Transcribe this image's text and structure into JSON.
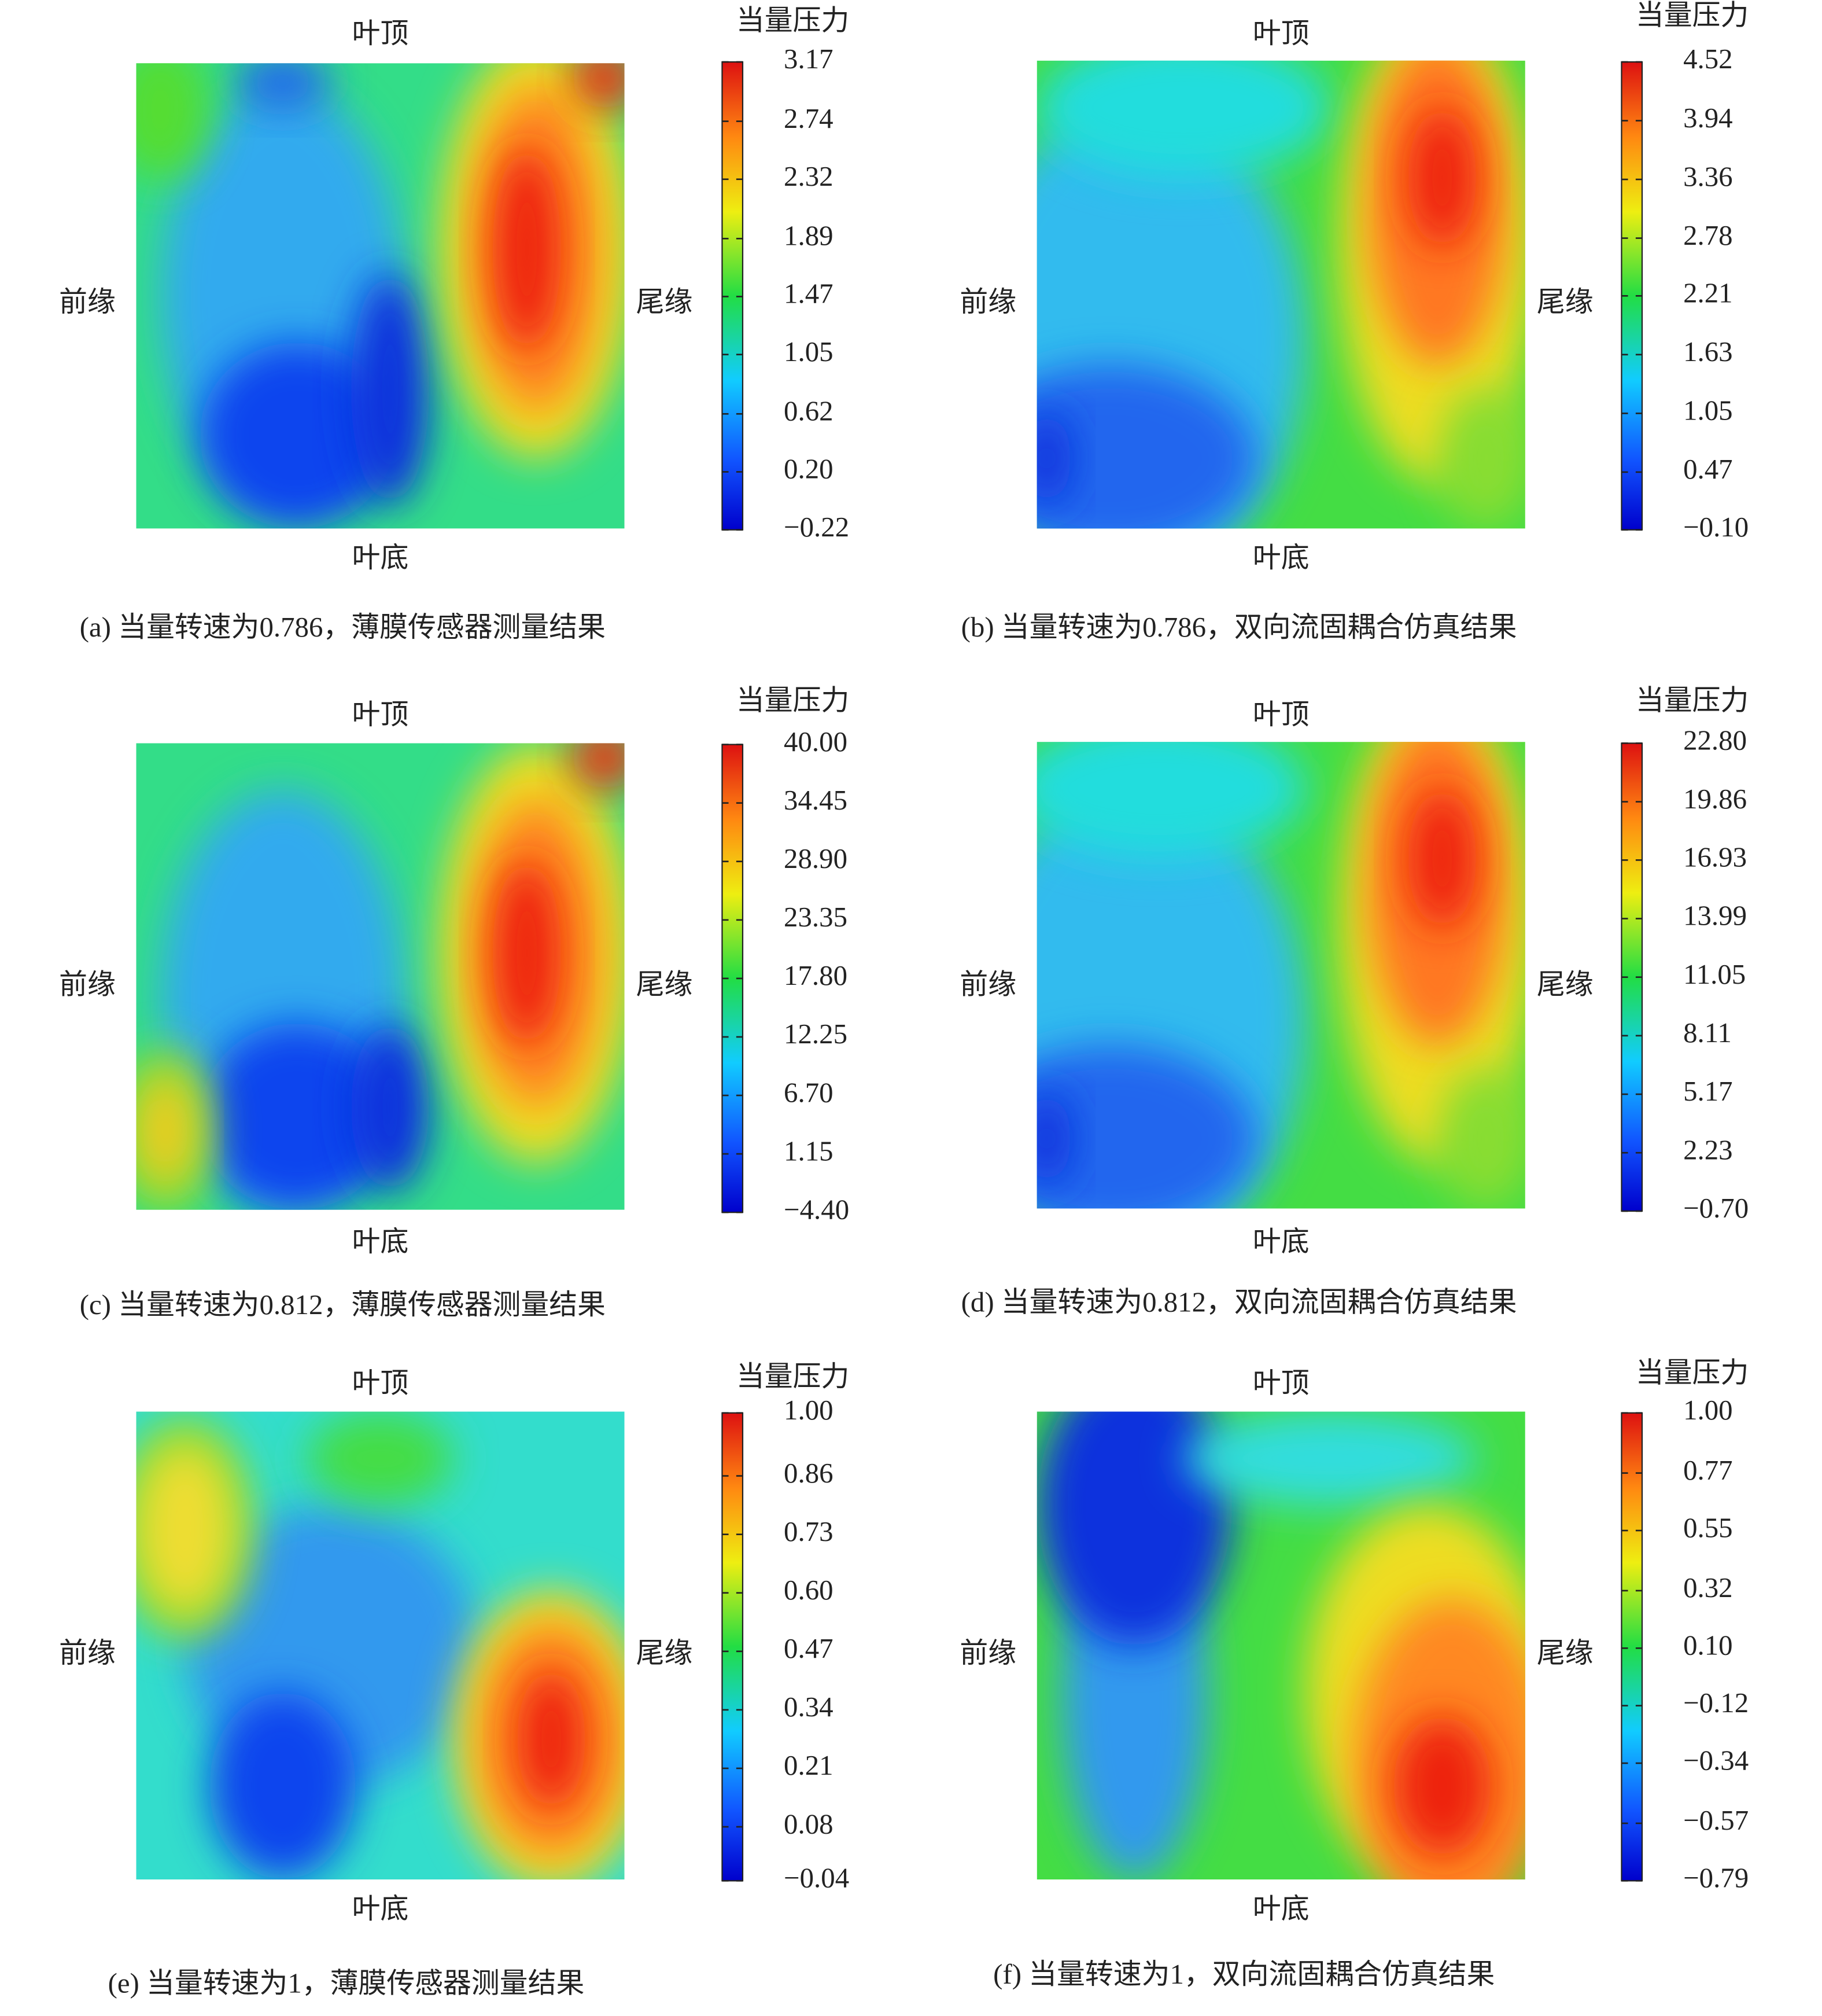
{
  "chart_data": [
    {
      "type": "contour",
      "title": "(a) 当量转速为0.786，薄膜传感器测量结果",
      "top_label": "叶顶",
      "bottom_label": "叶底",
      "left_label": "前缘",
      "right_label": "尾缘",
      "colorbar_label": "当量压力",
      "clim": [
        -0.22,
        3.17
      ],
      "cticks": [
        {
          "value": -0.22,
          "label": "−0.22"
        },
        {
          "value": 0.2,
          "label": "0.20"
        },
        0.62,
        1.05,
        1.47,
        1.89,
        2.32,
        2.74,
        3.17
      ]
    },
    {
      "type": "contour",
      "title": "(b) 当量转速为0.786，双向流固耦合仿真结果",
      "top_label": "叶顶",
      "bottom_label": "叶底",
      "left_label": "前缘",
      "right_label": "尾缘",
      "colorbar_label": "当量压力",
      "clim": [
        -0.1,
        4.52
      ],
      "cticks": [
        {
          "value": -0.1,
          "label": "−0.10"
        },
        0.47,
        1.05,
        1.63,
        2.21,
        2.78,
        3.36,
        3.94,
        4.52
      ]
    },
    {
      "type": "contour",
      "title": "(c) 当量转速为0.812，薄膜传感器测量结果",
      "top_label": "叶顶",
      "bottom_label": "叶底",
      "left_label": "前缘",
      "right_label": "尾缘",
      "colorbar_label": "当量压力",
      "clim": [
        -4.4,
        40
      ],
      "cticks": [
        {
          "value": -4.4,
          "label": "−4.40"
        },
        1.15,
        {
          "value": 6.7,
          "label": "6.70"
        },
        12.25,
        {
          "value": 17.8,
          "label": "17.80"
        },
        23.35,
        {
          "value": 28.9,
          "label": "28.90"
        },
        34.45,
        {
          "value": 40,
          "label": "40.00"
        }
      ]
    },
    {
      "type": "contour",
      "title": "(d) 当量转速为0.812，双向流固耦合仿真结果",
      "top_label": "叶顶",
      "bottom_label": "叶底",
      "left_label": "前缘",
      "right_label": "尾缘",
      "colorbar_label": "当量压力",
      "clim": [
        -0.7,
        22.8
      ],
      "cticks": [
        {
          "value": -0.7,
          "label": "−0.70"
        },
        2.23,
        5.17,
        8.11,
        11.05,
        13.99,
        16.93,
        19.86,
        {
          "value": 22.8,
          "label": "22.80"
        }
      ]
    },
    {
      "type": "contour",
      "title": "(e) 当量转速为1，薄膜传感器测量结果",
      "top_label": "叶顶",
      "bottom_label": "叶底",
      "left_label": "前缘",
      "right_label": "尾缘",
      "colorbar_label": "当量压力",
      "clim": [
        -0.04,
        1
      ],
      "cticks": [
        {
          "value": -0.04,
          "label": "−0.04"
        },
        0.08,
        0.21,
        0.34,
        0.47,
        {
          "value": 0.6,
          "label": "0.60"
        },
        0.73,
        0.86,
        {
          "value": 1,
          "label": "1.00"
        }
      ]
    },
    {
      "type": "contour",
      "title": "(f) 当量转速为1，双向流固耦合仿真结果",
      "top_label": "叶顶",
      "bottom_label": "叶底",
      "left_label": "前缘",
      "right_label": "尾缘",
      "colorbar_label": "当量压力",
      "clim": [
        -0.79,
        1
      ],
      "cticks": [
        {
          "value": -0.79,
          "label": "−0.79"
        },
        {
          "value": -0.57,
          "label": "−0.57"
        },
        {
          "value": -0.34,
          "label": "−0.34"
        },
        {
          "value": -0.12,
          "label": "−0.12"
        },
        {
          "value": 0.1,
          "label": "0.10"
        },
        0.32,
        0.55,
        0.77,
        {
          "value": 1,
          "label": "1.00"
        }
      ]
    }
  ]
}
